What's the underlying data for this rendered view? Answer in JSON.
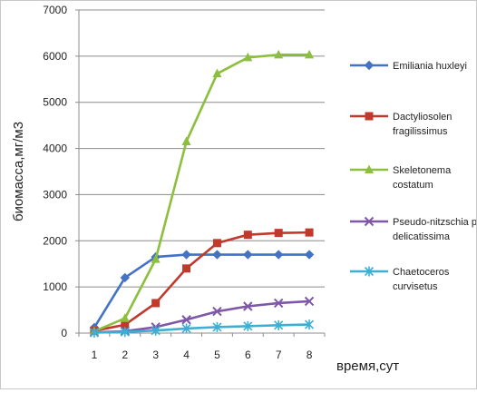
{
  "chart_data": {
    "type": "line",
    "title": "",
    "xlabel": "время,сут",
    "ylabel": "биомасса,мг/м3",
    "ylim": [
      0,
      7000
    ],
    "yticks": [
      0,
      1000,
      2000,
      3000,
      4000,
      5000,
      6000,
      7000
    ],
    "x": [
      1,
      2,
      3,
      4,
      5,
      6,
      7,
      8
    ],
    "grid": "horizontal",
    "legend_position": "right",
    "series": [
      {
        "name": "Emiliania huxleyi",
        "color": "#4472C4",
        "marker": "diamond",
        "legend_lines": [
          "Emiliania huxleyi"
        ],
        "values": [
          120,
          1200,
          1650,
          1700,
          1700,
          1700,
          1700,
          1700
        ]
      },
      {
        "name": "Dactyliosolen fragilissimus",
        "color": "#C0392B",
        "marker": "square",
        "legend_lines": [
          "Dactyliosolen",
          "fragilissimus"
        ],
        "values": [
          50,
          180,
          650,
          1400,
          1950,
          2130,
          2170,
          2180
        ]
      },
      {
        "name": "Skeletonema costatum",
        "color": "#8DBF3E",
        "marker": "triangle",
        "legend_lines": [
          "Skeletonema",
          "costatum"
        ],
        "values": [
          40,
          320,
          1600,
          4150,
          5620,
          5970,
          6030,
          6030
        ]
      },
      {
        "name": "Pseudo-nitzschia p-delicatissima",
        "color": "#7E57A8",
        "marker": "x",
        "legend_lines": [
          "Pseudo-nitzschia p-",
          "delicatissima"
        ],
        "values": [
          15,
          40,
          130,
          290,
          470,
          580,
          650,
          690
        ]
      },
      {
        "name": "Chaetoceros curvisetus",
        "color": "#3BB0D4",
        "marker": "star",
        "legend_lines": [
          "Chaetoceros",
          "curvisetus"
        ],
        "values": [
          10,
          25,
          55,
          100,
          130,
          150,
          170,
          185
        ]
      }
    ]
  }
}
